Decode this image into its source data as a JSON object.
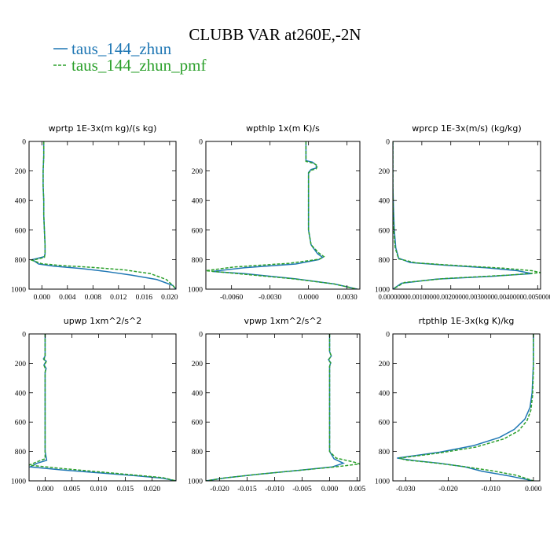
{
  "figure": {
    "title": "CLUBB VAR at260E,-2N",
    "legend": [
      {
        "label": "taus_144_zhun",
        "color": "#1f77b4",
        "dash": "solid"
      },
      {
        "label": "taus_144_zhun_pmf",
        "color": "#2ca02c",
        "dash": "dashed"
      }
    ]
  },
  "chart_data": [
    {
      "type": "line",
      "title": "wprtp  1E-3x(m kg)/(s kg)",
      "xlim": [
        -0.002,
        0.021
      ],
      "ylim": [
        1000,
        0
      ],
      "xticks": [
        0.0,
        0.004,
        0.008,
        0.012,
        0.016,
        0.02
      ],
      "xtick_labels": [
        "0.000",
        "0.004",
        "0.008",
        "0.012",
        "0.016",
        "0.020"
      ],
      "yticks": [
        0,
        200,
        400,
        600,
        800,
        1000
      ],
      "series": [
        {
          "name": "taus_144_zhun",
          "points": [
            [
              0.0003,
              0
            ],
            [
              0.0003,
              100
            ],
            [
              0.0002,
              200
            ],
            [
              0.0002,
              300
            ],
            [
              0.0003,
              400
            ],
            [
              0.0003,
              500
            ],
            [
              0.0004,
              600
            ],
            [
              0.0005,
              700
            ],
            [
              0.0005,
              760
            ],
            [
              0.0004,
              780
            ],
            [
              -0.0015,
              800
            ],
            [
              -0.0005,
              830
            ],
            [
              0.002,
              845
            ],
            [
              0.006,
              860
            ],
            [
              0.01,
              880
            ],
            [
              0.014,
              905
            ],
            [
              0.018,
              935
            ],
            [
              0.0205,
              975
            ],
            [
              0.021,
              1000
            ]
          ]
        },
        {
          "name": "taus_144_zhun_pmf",
          "points": [
            [
              0.0003,
              0
            ],
            [
              0.0003,
              100
            ],
            [
              0.0002,
              200
            ],
            [
              0.0002,
              300
            ],
            [
              0.0003,
              400
            ],
            [
              0.0003,
              500
            ],
            [
              0.0004,
              600
            ],
            [
              0.0005,
              700
            ],
            [
              0.0005,
              760
            ],
            [
              0.0004,
              785
            ],
            [
              -0.0015,
              805
            ],
            [
              0.0,
              828
            ],
            [
              0.003,
              840
            ],
            [
              0.008,
              853
            ],
            [
              0.013,
              870
            ],
            [
              0.017,
              895
            ],
            [
              0.0195,
              935
            ],
            [
              0.0205,
              975
            ],
            [
              0.021,
              1000
            ]
          ]
        }
      ]
    },
    {
      "type": "line",
      "title": "wpthlp  1x(m K)/s",
      "xlim": [
        -0.008,
        0.004
      ],
      "ylim": [
        1000,
        0
      ],
      "xticks": [
        -0.006,
        -0.003,
        0.0,
        0.003
      ],
      "xtick_labels": [
        "-0.0060",
        "-0.0030",
        "0.0000",
        "0.0030"
      ],
      "yticks": [
        0,
        200,
        400,
        600,
        800,
        1000
      ],
      "series": [
        {
          "name": "taus_144_zhun",
          "points": [
            [
              -0.0002,
              0
            ],
            [
              -0.0002,
              100
            ],
            [
              -0.0002,
              130
            ],
            [
              0.0003,
              140
            ],
            [
              0.0006,
              160
            ],
            [
              0.0006,
              180
            ],
            [
              0.0002,
              190
            ],
            [
              0.0,
              210
            ],
            [
              0.0,
              400
            ],
            [
              0.0,
              600
            ],
            [
              0.0002,
              700
            ],
            [
              0.0007,
              760
            ],
            [
              0.0011,
              785
            ],
            [
              0.0008,
              800
            ],
            [
              -0.001,
              830
            ],
            [
              -0.005,
              855
            ],
            [
              -0.0075,
              880
            ],
            [
              -0.005,
              895
            ],
            [
              -0.001,
              930
            ],
            [
              0.002,
              965
            ],
            [
              0.0038,
              1000
            ]
          ]
        },
        {
          "name": "taus_144_zhun_pmf",
          "points": [
            [
              -0.0002,
              0
            ],
            [
              -0.0002,
              100
            ],
            [
              -0.0002,
              135
            ],
            [
              0.0004,
              148
            ],
            [
              0.0007,
              165
            ],
            [
              0.0006,
              185
            ],
            [
              0.0002,
              195
            ],
            [
              0.0,
              215
            ],
            [
              0.0,
              400
            ],
            [
              0.0,
              600
            ],
            [
              0.0002,
              700
            ],
            [
              0.0008,
              755
            ],
            [
              0.0012,
              780
            ],
            [
              0.0008,
              798
            ],
            [
              -0.0015,
              825
            ],
            [
              -0.0058,
              850
            ],
            [
              -0.008,
              875
            ],
            [
              -0.0055,
              895
            ],
            [
              -0.0012,
              930
            ],
            [
              0.002,
              965
            ],
            [
              0.0038,
              1000
            ]
          ]
        }
      ]
    },
    {
      "type": "line",
      "title": "wprcp  1E-3x(m/s) (kg/kg)",
      "xlim": [
        0.0,
        0.0051
      ],
      "ylim": [
        1000,
        0
      ],
      "xticks": [
        0.0,
        0.001,
        0.002,
        0.003,
        0.004,
        0.005
      ],
      "xtick_labels": [
        "0.0000000",
        "0.0010000",
        "0.0020000",
        "0.0030000",
        "0.0040000",
        "0.0050000"
      ],
      "yticks": [
        0,
        200,
        400,
        600,
        800,
        1000
      ],
      "series": [
        {
          "name": "taus_144_zhun",
          "points": [
            [
              0.0,
              0
            ],
            [
              0.0,
              300
            ],
            [
              2e-05,
              450
            ],
            [
              5e-05,
              600
            ],
            [
              0.0001,
              720
            ],
            [
              0.0002,
              790
            ],
            [
              0.0006,
              820
            ],
            [
              0.0018,
              838
            ],
            [
              0.0032,
              855
            ],
            [
              0.0043,
              875
            ],
            [
              0.0048,
              895
            ],
            [
              0.0035,
              912
            ],
            [
              0.0015,
              932
            ],
            [
              0.0003,
              960
            ],
            [
              0.0,
              1000
            ]
          ]
        },
        {
          "name": "taus_144_zhun_pmf",
          "points": [
            [
              0.0,
              0
            ],
            [
              0.0,
              300
            ],
            [
              1e-05,
              450
            ],
            [
              3e-05,
              600
            ],
            [
              8e-05,
              720
            ],
            [
              0.0002,
              795
            ],
            [
              0.0008,
              822
            ],
            [
              0.0022,
              840
            ],
            [
              0.0038,
              858
            ],
            [
              0.0048,
              875
            ],
            [
              0.0051,
              888
            ],
            [
              0.004,
              905
            ],
            [
              0.0018,
              928
            ],
            [
              0.0004,
              955
            ],
            [
              0.0,
              1000
            ]
          ]
        }
      ]
    },
    {
      "type": "line",
      "title": "upwp  1xm^2/s^2",
      "xlim": [
        -0.003,
        0.0245
      ],
      "ylim": [
        1000,
        0
      ],
      "xticks": [
        0.0,
        0.005,
        0.01,
        0.015,
        0.02
      ],
      "xtick_labels": [
        "0.000",
        "0.005",
        "0.010",
        "0.015",
        "0.020"
      ],
      "yticks": [
        0,
        200,
        400,
        600,
        800,
        1000
      ],
      "series": [
        {
          "name": "taus_144_zhun",
          "points": [
            [
              0.0,
              0
            ],
            [
              0.0,
              150
            ],
            [
              -0.0003,
              170
            ],
            [
              0.0002,
              185
            ],
            [
              -0.0002,
              210
            ],
            [
              0.0002,
              235
            ],
            [
              0.0,
              260
            ],
            [
              0.0,
              400
            ],
            [
              0.0,
              600
            ],
            [
              0.0,
              800
            ],
            [
              0.0003,
              860
            ],
            [
              -0.0015,
              880
            ],
            [
              -0.0028,
              905
            ],
            [
              0.003,
              925
            ],
            [
              0.01,
              945
            ],
            [
              0.017,
              965
            ],
            [
              0.022,
              982
            ],
            [
              0.0245,
              1000
            ]
          ]
        },
        {
          "name": "taus_144_zhun_pmf",
          "points": [
            [
              0.0,
              0
            ],
            [
              0.0,
              150
            ],
            [
              -0.0002,
              175
            ],
            [
              0.0002,
              190
            ],
            [
              -0.0002,
              215
            ],
            [
              0.0001,
              240
            ],
            [
              0.0,
              265
            ],
            [
              0.0,
              400
            ],
            [
              0.0,
              600
            ],
            [
              0.0,
              800
            ],
            [
              0.0,
              850
            ],
            [
              -0.0015,
              870
            ],
            [
              -0.003,
              893
            ],
            [
              0.002,
              912
            ],
            [
              0.009,
              935
            ],
            [
              0.016,
              958
            ],
            [
              0.022,
              978
            ],
            [
              0.0245,
              1000
            ]
          ]
        }
      ]
    },
    {
      "type": "line",
      "title": "vpwp  1xm^2/s^2",
      "xlim": [
        -0.0225,
        0.0055
      ],
      "ylim": [
        1000,
        0
      ],
      "xticks": [
        -0.02,
        -0.015,
        -0.01,
        -0.005,
        0.0,
        0.005
      ],
      "xtick_labels": [
        "-0.020",
        "-0.015",
        "-0.010",
        "-0.005",
        "0.000",
        "0.005"
      ],
      "yticks": [
        0,
        200,
        400,
        600,
        800,
        1000
      ],
      "series": [
        {
          "name": "taus_144_zhun",
          "points": [
            [
              0.0,
              0
            ],
            [
              0.0,
              120
            ],
            [
              0.0003,
              150
            ],
            [
              -0.0002,
              175
            ],
            [
              0.0002,
              195
            ],
            [
              0.0,
              220
            ],
            [
              0.0,
              400
            ],
            [
              0.0,
              600
            ],
            [
              0.0,
              800
            ],
            [
              0.0008,
              850
            ],
            [
              0.0025,
              880
            ],
            [
              0.0005,
              905
            ],
            [
              -0.006,
              930
            ],
            [
              -0.013,
              955
            ],
            [
              -0.019,
              980
            ],
            [
              -0.0225,
              1000
            ]
          ]
        },
        {
          "name": "taus_144_zhun_pmf",
          "points": [
            [
              0.0,
              0
            ],
            [
              0.0,
              120
            ],
            [
              0.0003,
              150
            ],
            [
              -0.0002,
              178
            ],
            [
              0.0002,
              198
            ],
            [
              0.0,
              222
            ],
            [
              0.0,
              400
            ],
            [
              0.0,
              600
            ],
            [
              0.0,
              800
            ],
            [
              0.0012,
              845
            ],
            [
              0.0045,
              873
            ],
            [
              0.0055,
              885
            ],
            [
              0.001,
              905
            ],
            [
              -0.006,
              930
            ],
            [
              -0.013,
              955
            ],
            [
              -0.019,
              980
            ],
            [
              -0.0225,
              1000
            ]
          ]
        }
      ]
    },
    {
      "type": "line",
      "title": "rtpthlp  1E-3x(kg K)/kg",
      "xlim": [
        -0.033,
        0.0015
      ],
      "ylim": [
        1000,
        0
      ],
      "xticks": [
        -0.03,
        -0.02,
        -0.01,
        0.0
      ],
      "xtick_labels": [
        "-0.030",
        "-0.020",
        "-0.010",
        "0.000"
      ],
      "yticks": [
        0,
        200,
        400,
        600,
        800,
        1000
      ],
      "series": [
        {
          "name": "taus_144_zhun",
          "points": [
            [
              0.0,
              0
            ],
            [
              0.0,
              200
            ],
            [
              -0.0003,
              400
            ],
            [
              -0.0008,
              500
            ],
            [
              -0.002,
              580
            ],
            [
              -0.0045,
              650
            ],
            [
              -0.008,
              705
            ],
            [
              -0.014,
              760
            ],
            [
              -0.022,
              805
            ],
            [
              -0.032,
              845
            ],
            [
              -0.028,
              862
            ],
            [
              -0.022,
              880
            ],
            [
              -0.016,
              905
            ],
            [
              -0.012,
              935
            ],
            [
              -0.006,
              965
            ],
            [
              0.0,
              1000
            ]
          ]
        },
        {
          "name": "taus_144_zhun_pmf",
          "points": [
            [
              0.0,
              0
            ],
            [
              0.0,
              250
            ],
            [
              -0.0002,
              420
            ],
            [
              -0.0006,
              520
            ],
            [
              -0.0015,
              590
            ],
            [
              -0.0035,
              660
            ],
            [
              -0.007,
              715
            ],
            [
              -0.0135,
              770
            ],
            [
              -0.022,
              810
            ],
            [
              -0.0315,
              845
            ],
            [
              -0.03,
              858
            ],
            [
              -0.024,
              875
            ],
            [
              -0.017,
              900
            ],
            [
              -0.01,
              930
            ],
            [
              -0.004,
              962
            ],
            [
              0.0,
              1000
            ]
          ]
        }
      ]
    }
  ]
}
